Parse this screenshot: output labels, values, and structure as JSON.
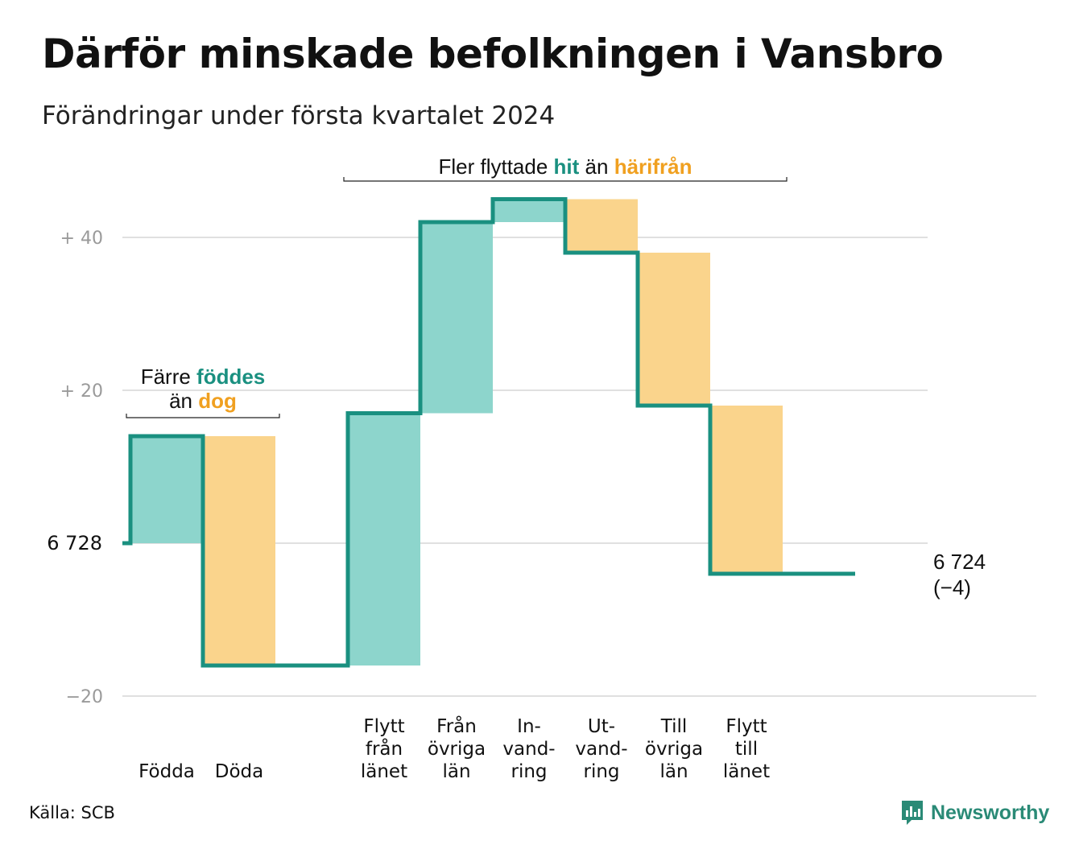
{
  "title": "Därför minskade befolkningen i Vansbro",
  "subtitle": "Förändringar under första kvartalet 2024",
  "source": "Källa: SCB",
  "brand": "Newsworthy",
  "colors": {
    "increase": "#8dd5cc",
    "decrease": "#fad48c",
    "line": "#1a9080",
    "grid": "#e0e0e0",
    "hit": "#1a9080",
    "harifran": "#f0a020"
  },
  "chart_data": {
    "type": "waterfall",
    "start_value": 6728,
    "start_label": "6 728",
    "end_value": 6724,
    "end_label": "6 724",
    "end_change_label": "(−4)",
    "y_ticks": [
      {
        "value": 40,
        "label": "+  40"
      },
      {
        "value": 20,
        "label": "+  20"
      },
      {
        "value": 0,
        "label": "6  728"
      },
      {
        "value": -20,
        "label": "−20"
      }
    ],
    "ylim": [
      -20,
      45
    ],
    "steps": [
      {
        "label": [
          "Födda"
        ],
        "change": 14
      },
      {
        "label": [
          "Döda"
        ],
        "change": -30
      },
      {
        "label": [],
        "change": 0
      },
      {
        "label": [
          "Flytt",
          "från",
          "länet"
        ],
        "change": 33
      },
      {
        "label": [
          "Från",
          "övriga",
          "län"
        ],
        "change": 25
      },
      {
        "label": [
          "In-",
          "vand-",
          "ring"
        ],
        "change": 3
      },
      {
        "label": [
          "Ut-",
          "vand-",
          "ring"
        ],
        "change": -7
      },
      {
        "label": [
          "Till",
          "övriga",
          "län"
        ],
        "change": -20
      },
      {
        "label": [
          "Flytt",
          "till",
          "länet"
        ],
        "change": -22
      },
      {
        "label": [],
        "change": 0
      }
    ],
    "annotations": [
      {
        "lines": [
          [
            {
              "text": "Färre "
            },
            {
              "text": "föddes",
              "style": "hit"
            }
          ],
          [
            {
              "text": "än "
            },
            {
              "text": "dog",
              "style": "harifran"
            }
          ]
        ],
        "span": [
          0,
          1
        ]
      },
      {
        "lines": [
          [
            {
              "text": "Fler flyttade "
            },
            {
              "text": "hit",
              "style": "hit"
            },
            {
              "text": " än "
            },
            {
              "text": "härifrån",
              "style": "harifran"
            }
          ]
        ],
        "span": [
          3,
          8
        ]
      }
    ]
  }
}
